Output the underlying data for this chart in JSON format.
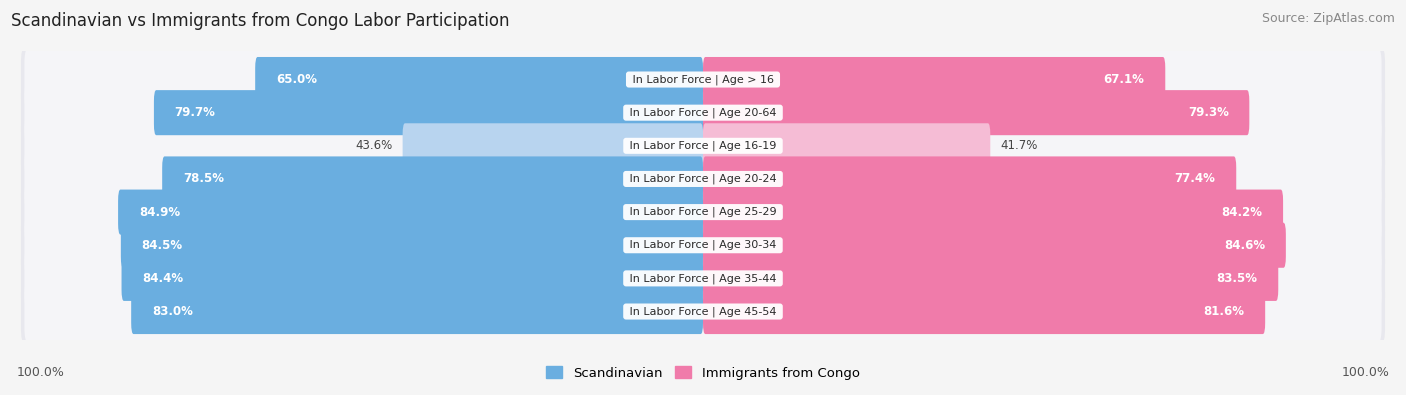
{
  "title": "Scandinavian vs Immigrants from Congo Labor Participation",
  "source": "Source: ZipAtlas.com",
  "categories": [
    "In Labor Force | Age > 16",
    "In Labor Force | Age 20-64",
    "In Labor Force | Age 16-19",
    "In Labor Force | Age 20-24",
    "In Labor Force | Age 25-29",
    "In Labor Force | Age 30-34",
    "In Labor Force | Age 35-44",
    "In Labor Force | Age 45-54"
  ],
  "scandinavian": [
    65.0,
    79.7,
    43.6,
    78.5,
    84.9,
    84.5,
    84.4,
    83.0
  ],
  "congo": [
    67.1,
    79.3,
    41.7,
    77.4,
    84.2,
    84.6,
    83.5,
    81.6
  ],
  "scand_color_full": "#6aaee0",
  "scand_color_light": "#b8d4ef",
  "congo_color_full": "#f07baa",
  "congo_color_light": "#f5bcd5",
  "row_bg_color": "#e8e8ee",
  "row_inner_color": "#f5f5f8",
  "bg_color": "#f5f5f5",
  "legend_scand": "Scandinavian",
  "legend_congo": "Immigrants from Congo",
  "max_val": 100.0,
  "title_fontsize": 12,
  "tick_fontsize": 9,
  "source_fontsize": 9,
  "cat_label_fontsize": 8.0,
  "val_label_fontsize": 8.5
}
